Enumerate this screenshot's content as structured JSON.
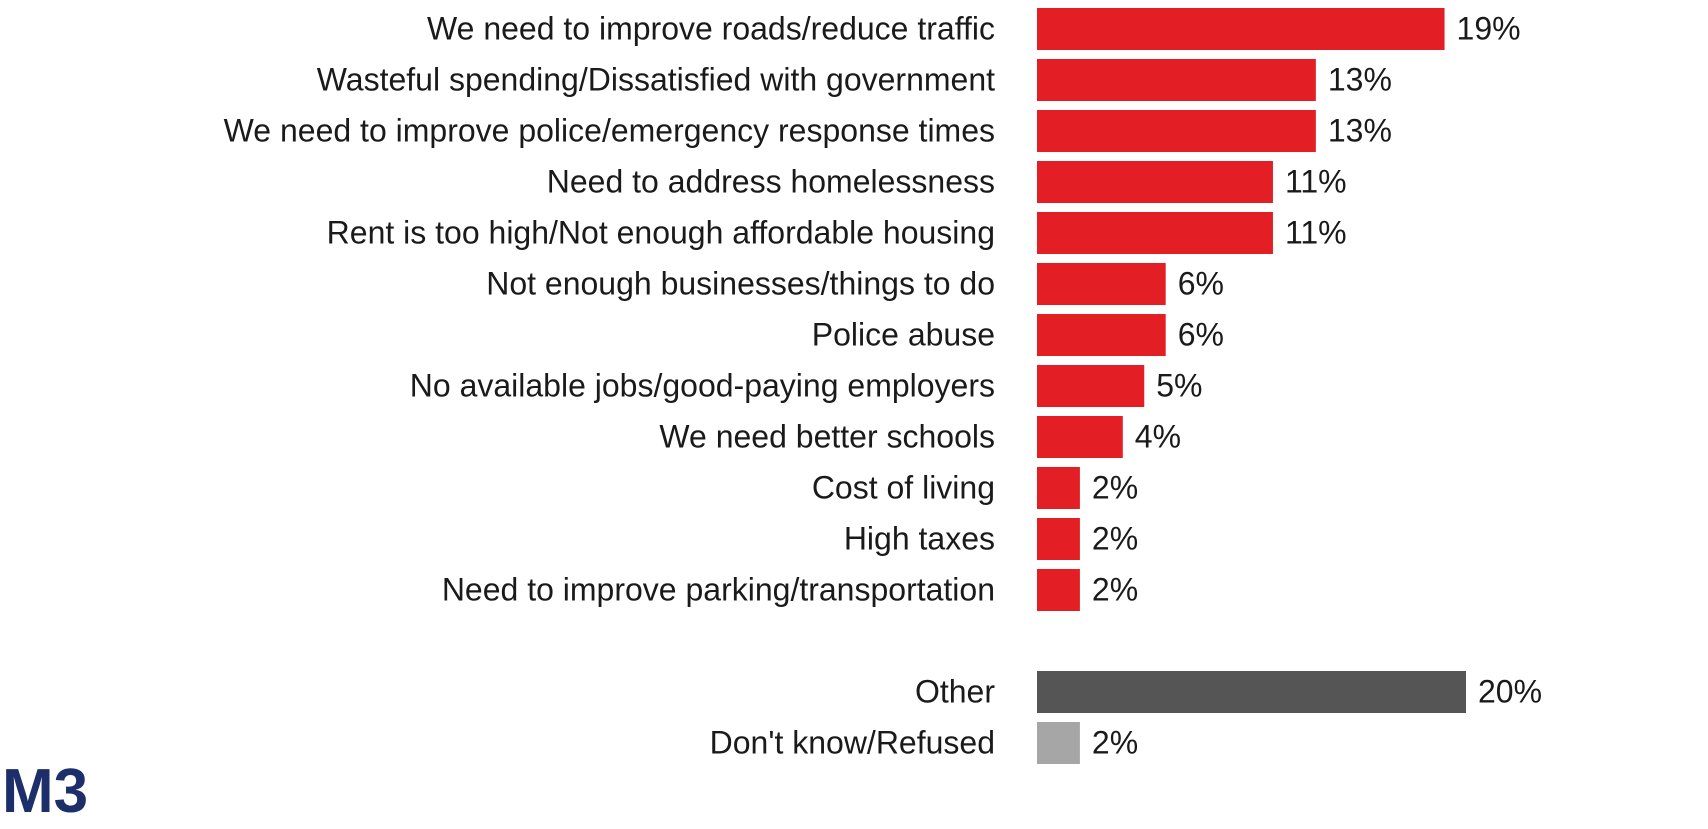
{
  "chart_data": {
    "type": "bar",
    "orientation": "horizontal",
    "categories": [
      "We need to improve roads/reduce traffic",
      "Wasteful spending/Dissatisfied with government",
      "We need to improve police/emergency response times",
      "Need to address homelessness",
      "Rent is too high/Not enough affordable housing",
      "Not enough businesses/things to do",
      "Police abuse",
      "No available jobs/good-paying employers",
      "We need better schools",
      "Cost of living",
      "High taxes",
      "Need to improve parking/transportation",
      null,
      "Other",
      "Don't know/Refused"
    ],
    "values": [
      19,
      13,
      13,
      11,
      11,
      6,
      6,
      5,
      4,
      2,
      2,
      2,
      null,
      20,
      2
    ],
    "value_labels": [
      "19%",
      "13%",
      "13%",
      "11%",
      "11%",
      "6%",
      "6%",
      "5%",
      "4%",
      "2%",
      "2%",
      "2%",
      null,
      "20%",
      "2%"
    ],
    "colors": [
      "#e31e24",
      "#e31e24",
      "#e31e24",
      "#e31e24",
      "#e31e24",
      "#e31e24",
      "#e31e24",
      "#e31e24",
      "#e31e24",
      "#e31e24",
      "#e31e24",
      "#e31e24",
      null,
      "#555555",
      "#a6a6a6"
    ],
    "grid": false
  },
  "logo": "M3"
}
